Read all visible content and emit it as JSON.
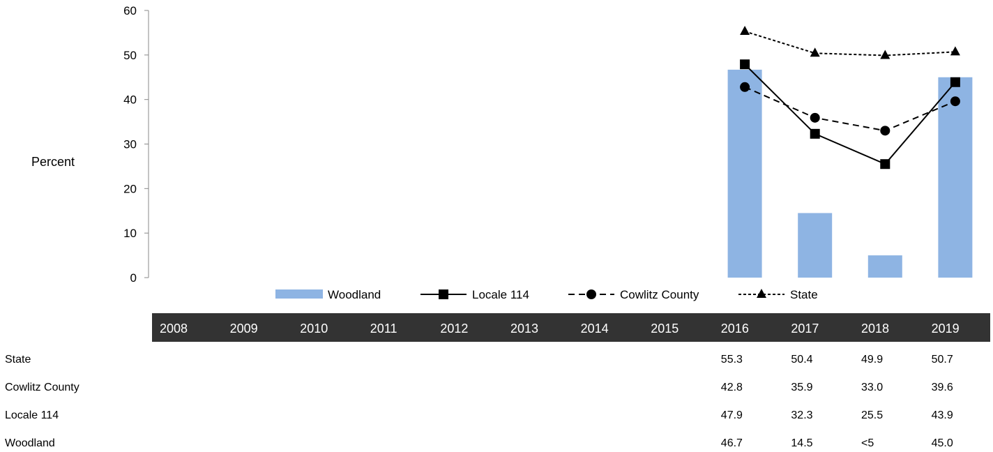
{
  "chart_data": {
    "type": "bar",
    "ylabel": "Percent",
    "ylim": [
      0,
      60
    ],
    "yticks": [
      0,
      10,
      20,
      30,
      40,
      50,
      60
    ],
    "categories": [
      "2008",
      "2009",
      "2010",
      "2011",
      "2012",
      "2013",
      "2014",
      "2015",
      "2016",
      "2017",
      "2018",
      "2019"
    ],
    "series": [
      {
        "name": "Woodland",
        "kind": "bar",
        "color": "#8eb4e3",
        "values": [
          null,
          null,
          null,
          null,
          null,
          null,
          null,
          null,
          46.7,
          14.5,
          5,
          45.0
        ],
        "labels": [
          "",
          "",
          "",
          "",
          "",
          "",
          "",
          "",
          "46.7",
          "14.5",
          "<5",
          "45.0"
        ]
      },
      {
        "name": "Locale 114",
        "kind": "line",
        "dash": "solid",
        "marker": "square",
        "color": "#000000",
        "values": [
          null,
          null,
          null,
          null,
          null,
          null,
          null,
          null,
          47.9,
          32.3,
          25.5,
          43.9
        ],
        "labels": [
          "",
          "",
          "",
          "",
          "",
          "",
          "",
          "",
          "47.9",
          "32.3",
          "25.5",
          "43.9"
        ]
      },
      {
        "name": "Cowlitz County",
        "kind": "line",
        "dash": "dashed",
        "marker": "circle",
        "color": "#000000",
        "values": [
          null,
          null,
          null,
          null,
          null,
          null,
          null,
          null,
          42.8,
          35.9,
          33.0,
          39.6
        ],
        "labels": [
          "",
          "",
          "",
          "",
          "",
          "",
          "",
          "",
          "42.8",
          "35.9",
          "33.0",
          "39.6"
        ]
      },
      {
        "name": "State",
        "kind": "line",
        "dash": "dotted",
        "marker": "triangle",
        "color": "#000000",
        "values": [
          null,
          null,
          null,
          null,
          null,
          null,
          null,
          null,
          55.3,
          50.4,
          49.9,
          50.7
        ],
        "labels": [
          "",
          "",
          "",
          "",
          "",
          "",
          "",
          "",
          "55.3",
          "50.4",
          "49.9",
          "50.7"
        ]
      }
    ],
    "table_row_order": [
      "State",
      "Cowlitz County",
      "Locale 114",
      "Woodland"
    ],
    "legend_position": "bottom",
    "grid": false,
    "header_color": "#333333"
  }
}
